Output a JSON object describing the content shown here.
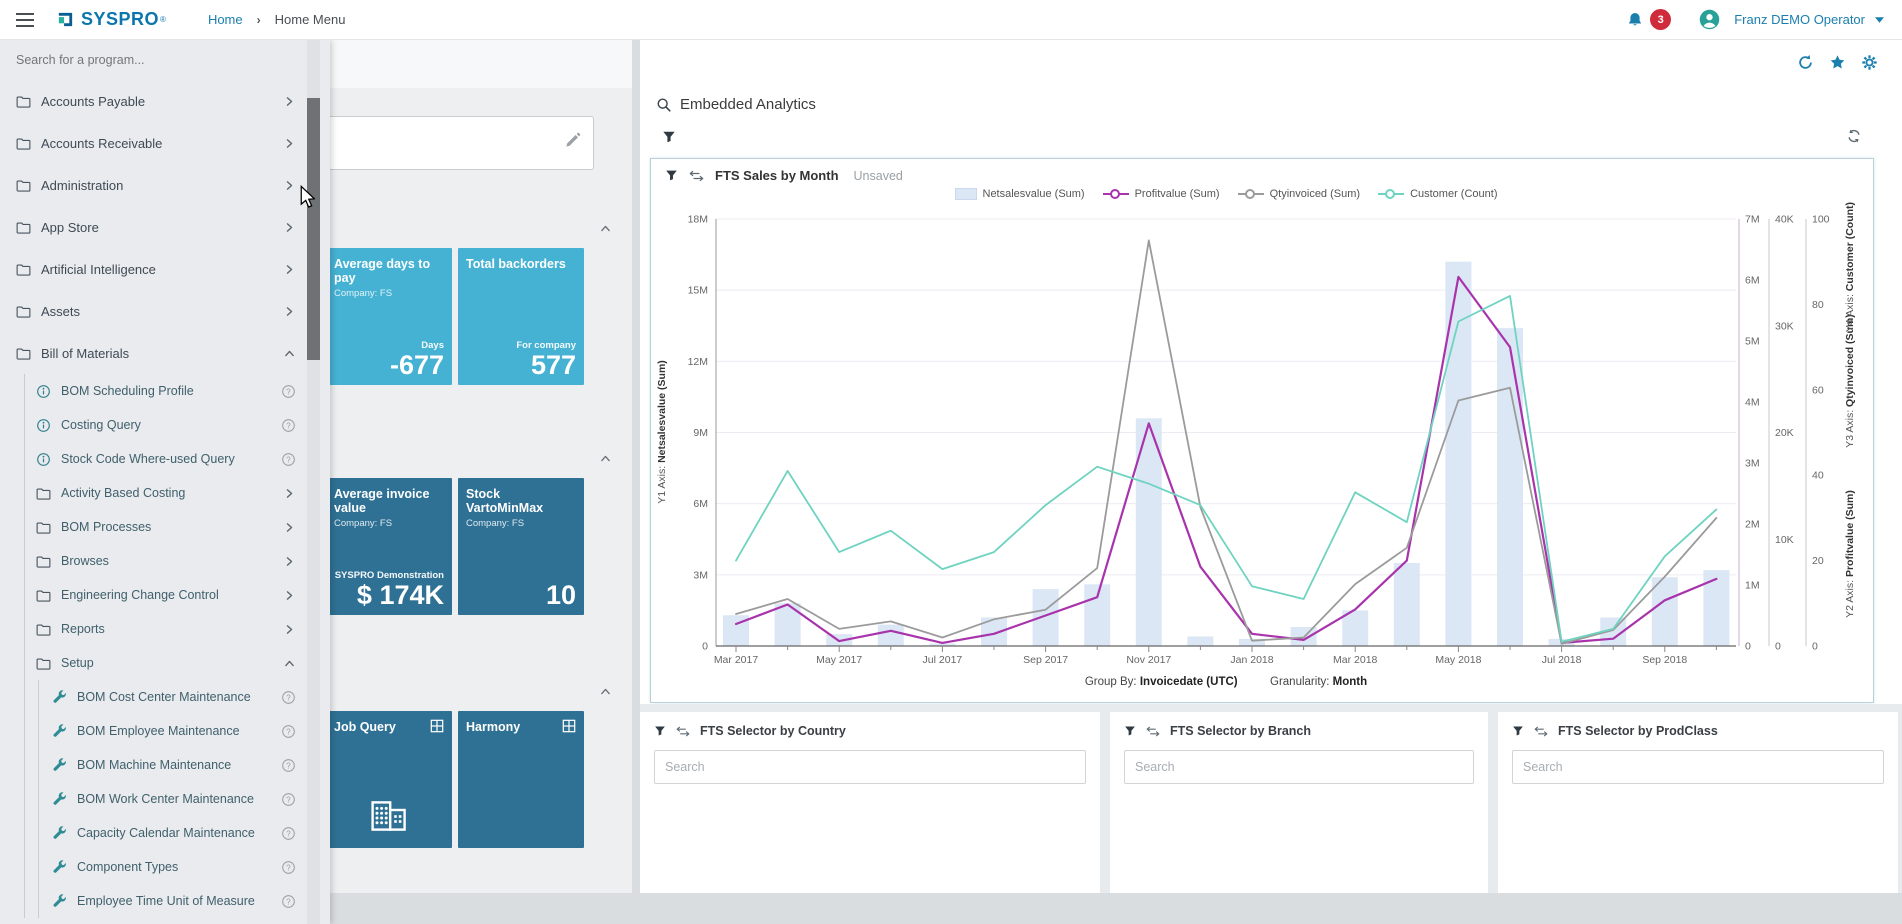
{
  "topbar": {
    "logo_text": "SYSPRO",
    "logo_mark": "®",
    "breadcrumb": [
      "Home",
      "Home Menu"
    ],
    "notification_count": "3",
    "user_name": "Franz DEMO Operator"
  },
  "program_search": {
    "placeholder": "Search for a program..."
  },
  "sidebar": {
    "items": [
      {
        "label": "Accounts Payable",
        "icon": "folder",
        "trail": "chevron-right",
        "level": 0
      },
      {
        "label": "Accounts Receivable",
        "icon": "folder",
        "trail": "chevron-right",
        "level": 0
      },
      {
        "label": "Administration",
        "icon": "folder",
        "trail": "chevron-right",
        "level": 0
      },
      {
        "label": "App Store",
        "icon": "folder",
        "trail": "chevron-right",
        "level": 0
      },
      {
        "label": "Artificial Intelligence",
        "icon": "folder",
        "trail": "chevron-right",
        "level": 0
      },
      {
        "label": "Assets",
        "icon": "folder",
        "trail": "chevron-right",
        "level": 0
      },
      {
        "label": "Bill of Materials",
        "icon": "folder",
        "trail": "chevron-up",
        "level": 0
      },
      {
        "label": "BOM Scheduling Profile",
        "icon": "info",
        "trail": "help",
        "level": 1
      },
      {
        "label": "Costing Query",
        "icon": "info",
        "trail": "help",
        "level": 1
      },
      {
        "label": "Stock Code Where-used Query",
        "icon": "info",
        "trail": "help",
        "level": 1
      },
      {
        "label": "Activity Based Costing",
        "icon": "folder",
        "trail": "chevron-right",
        "level": 1
      },
      {
        "label": "BOM Processes",
        "icon": "folder",
        "trail": "chevron-right",
        "level": 1
      },
      {
        "label": "Browses",
        "icon": "folder",
        "trail": "chevron-right",
        "level": 1
      },
      {
        "label": "Engineering Change Control",
        "icon": "folder",
        "trail": "chevron-right",
        "level": 1
      },
      {
        "label": "Reports",
        "icon": "folder",
        "trail": "chevron-right",
        "level": 1
      },
      {
        "label": "Setup",
        "icon": "folder",
        "trail": "chevron-up",
        "level": 1
      },
      {
        "label": "BOM Cost Center Maintenance",
        "icon": "wrench",
        "trail": "help",
        "level": 2
      },
      {
        "label": "BOM Employee Maintenance",
        "icon": "wrench",
        "trail": "help",
        "level": 2
      },
      {
        "label": "BOM Machine Maintenance",
        "icon": "wrench",
        "trail": "help",
        "level": 2
      },
      {
        "label": "BOM Work Center Maintenance",
        "icon": "wrench",
        "trail": "help",
        "level": 2
      },
      {
        "label": "Capacity Calendar Maintenance",
        "icon": "wrench",
        "trail": "help",
        "level": 2
      },
      {
        "label": "Component Types",
        "icon": "wrench",
        "trail": "help",
        "level": 2
      },
      {
        "label": "Employee Time Unit of Measure",
        "icon": "wrench",
        "trail": "help",
        "level": 2
      }
    ]
  },
  "accent": {
    "tile_light": "#45b2d3",
    "tile_dark": "#2f7195",
    "icon_blue": "#1b7fae",
    "teal_icon": "#2f7f8c",
    "badge_red": "#cf2b3a"
  },
  "tile_groups": [
    {
      "tiles": [
        {
          "title": "Average days to pay",
          "subtitle": "Company: FS",
          "unit_label": "Days",
          "value": "-677",
          "style": "light"
        },
        {
          "title": "Total backorders",
          "subtitle": "",
          "unit_label": "For company",
          "value": "577",
          "style": "light"
        }
      ]
    },
    {
      "tiles": [
        {
          "title": "Average invoice value",
          "subtitle": "Company: FS",
          "unit_label": "SYSPRO Demonstration",
          "value": "$ 174K",
          "style": "dark"
        },
        {
          "title": "Stock VartoMinMax",
          "subtitle": "Company: FS",
          "unit_label": "",
          "value": "10",
          "style": "dark"
        }
      ]
    },
    {
      "tiles": [
        {
          "title": "Job Query",
          "subtitle": "",
          "unit_label": "",
          "value": "",
          "style": "dark",
          "corner_icon": "grid",
          "center_icon": "buildings"
        },
        {
          "title": "Harmony",
          "subtitle": "",
          "unit_label": "",
          "value": "",
          "style": "dark",
          "corner_icon": "grid"
        }
      ]
    }
  ],
  "analytics": {
    "title": "Embedded Analytics",
    "chart_card": {
      "title": "FTS Sales by Month",
      "status": "Unsaved"
    },
    "group_by_label": "Group By:",
    "group_by_value": "Invoicedate (UTC)",
    "granularity_label": "Granularity:",
    "granularity_value": "Month",
    "selectors": [
      {
        "title": "FTS Selector by Country",
        "search_placeholder": "Search"
      },
      {
        "title": "FTS Selector by Branch",
        "search_placeholder": "Search"
      },
      {
        "title": "FTS Selector by ProdClass",
        "search_placeholder": "Search"
      }
    ]
  },
  "chart_data": {
    "type": "mixed-bar-line",
    "title": "FTS Sales by Month",
    "categories": [
      "Mar 2017",
      "Apr 2017",
      "May 2017",
      "Jun 2017",
      "Jul 2017",
      "Aug 2017",
      "Sep 2017",
      "Oct 2017",
      "Nov 2017",
      "Dec 2017",
      "Jan 2018",
      "Feb 2018",
      "Mar 2018",
      "Apr 2018",
      "May 2018",
      "Jun 2018",
      "Jul 2018",
      "Aug 2018",
      "Sep 2018",
      "Oct 2018"
    ],
    "x_label_every": 2,
    "grid": true,
    "legend_position": "top",
    "series": [
      {
        "name": "Netsalesvalue (Sum)",
        "type": "bar",
        "axis": "Y1",
        "unit": "M",
        "color": "#dce7f6",
        "values": [
          1.3,
          1.8,
          0.5,
          0.9,
          0.1,
          1.2,
          2.4,
          2.6,
          9.6,
          0.4,
          0.3,
          0.8,
          1.5,
          3.5,
          16.2,
          13.4,
          0.3,
          1.2,
          2.9,
          3.2
        ]
      },
      {
        "name": "Profitvalue (Sum)",
        "type": "line",
        "axis": "Y2",
        "unit": "M",
        "color": "#a833ab",
        "values": [
          0.36,
          0.68,
          0.08,
          0.25,
          0.05,
          0.2,
          0.5,
          0.8,
          3.65,
          1.3,
          0.2,
          0.1,
          0.6,
          1.4,
          6.05,
          4.9,
          0.05,
          0.12,
          0.75,
          1.1
        ]
      },
      {
        "name": "Qtyinvoiced (Sum)",
        "type": "line",
        "axis": "Y3",
        "unit": "K",
        "color": "#9b9b9b",
        "values": [
          3.0,
          4.4,
          1.6,
          2.3,
          0.8,
          2.5,
          3.4,
          7.3,
          38,
          13,
          0.5,
          0.8,
          5.8,
          9.2,
          23,
          24.2,
          0.2,
          1.5,
          6.5,
          12
        ]
      },
      {
        "name": "Customer (Count)",
        "type": "line",
        "axis": "Y4",
        "unit": "count",
        "color": "#6ed3c0",
        "values": [
          20,
          41,
          22,
          27,
          18,
          22,
          33,
          42,
          38,
          33,
          14,
          11,
          36,
          29,
          76,
          82,
          1,
          4,
          21,
          32
        ]
      }
    ],
    "axes": {
      "Y1": {
        "label": "Y1 Axis: Netsalesvalue (Sum)",
        "ticks": [
          "18M",
          "15M",
          "12M",
          "9M",
          "6M",
          "3M",
          "0"
        ],
        "max": 18,
        "position": "left"
      },
      "Y2": {
        "label": "Y2 Axis: Profitvalue (Sum)",
        "ticks": [
          "7M",
          "6M",
          "5M",
          "4M",
          "3M",
          "2M",
          "1M",
          "0"
        ],
        "max": 7,
        "position": "right"
      },
      "Y3": {
        "label": "Y3 Axis: Qtyinvoiced (Sum)",
        "ticks": [
          "40K",
          "30K",
          "20K",
          "10K",
          "0"
        ],
        "max": 40,
        "position": "right"
      },
      "Y4": {
        "label": "Y4 Axis: Customer (Count)",
        "ticks": [
          "100",
          "80",
          "60",
          "40",
          "20",
          "0"
        ],
        "max": 100,
        "position": "right"
      }
    }
  }
}
